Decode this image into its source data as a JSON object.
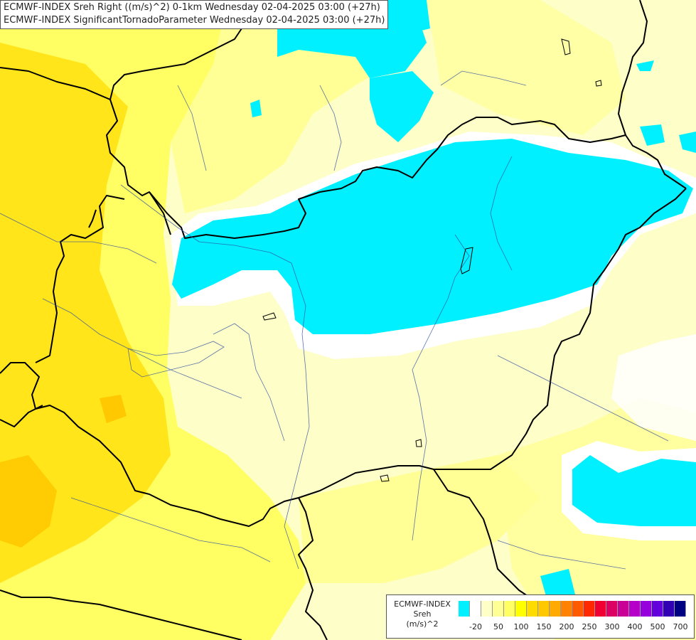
{
  "titles": {
    "line1": "ECMWF-INDEX Sreh Right ((m/s)^2) 0-1km Wednesday 02-04-2025 03:00 (+27h)",
    "line2": "ECMWF-INDEX SignificantTornadoParameter Wednesday 02-04-2025 03:00 (+27h)"
  },
  "legend": {
    "source": "ECMWF-INDEX",
    "variable": "Sreh",
    "unit": "(m/s)^2",
    "colors": [
      "#00f0ff",
      "#ffffff",
      "#ffffc8",
      "#ffff96",
      "#ffff64",
      "#ffff00",
      "#ffdc00",
      "#ffc800",
      "#ffaa00",
      "#ff8200",
      "#ff5a00",
      "#ff2800",
      "#f00032",
      "#dc0064",
      "#c80096",
      "#b400c8",
      "#9600dc",
      "#6400dc",
      "#3200b4",
      "#000082"
    ],
    "ticks": [
      {
        "label": "-20",
        "index": 1
      },
      {
        "label": "50",
        "index": 3
      },
      {
        "label": "100",
        "index": 5
      },
      {
        "label": "150",
        "index": 7
      },
      {
        "label": "200",
        "index": 9
      },
      {
        "label": "250",
        "index": 11
      },
      {
        "label": "300",
        "index": 13
      },
      {
        "label": "400",
        "index": 15
      },
      {
        "label": "500",
        "index": 17
      },
      {
        "label": "700",
        "index": 19
      }
    ]
  },
  "map": {
    "background": "#fefec8",
    "fill_colors": {
      "cyan": "#00f0ff",
      "white": "#ffffff",
      "pale": "#ffffc8",
      "light_yellow": "#ffff96",
      "yellow": "#ffff64",
      "bright_yellow": "#ffff00",
      "gold": "#ffdc00",
      "orange": "#ffc800"
    },
    "border_color": "#000000",
    "river_color": "#3050a0"
  }
}
